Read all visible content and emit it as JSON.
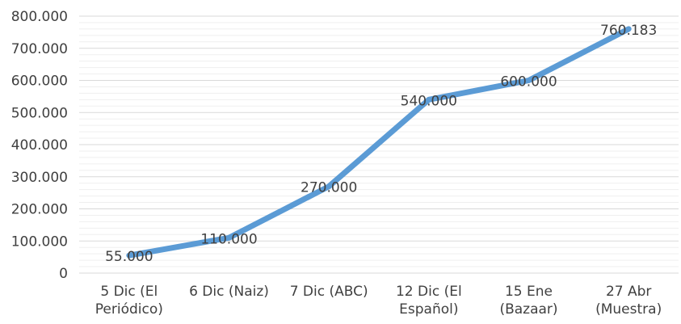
{
  "chart_data": {
    "type": "line",
    "title": "",
    "xlabel": "",
    "ylabel": "",
    "ylim": [
      0,
      800000
    ],
    "y_ticks": [
      "0",
      "100.000",
      "200.000",
      "300.000",
      "400.000",
      "500.000",
      "600.000",
      "700.000",
      "800.000"
    ],
    "categories": [
      [
        "5 Dic (El",
        "Periódico)"
      ],
      [
        "6 Dic (Naiz)"
      ],
      [
        "7 Dic (ABC)"
      ],
      [
        "12 Dic (El",
        "Español)"
      ],
      [
        "15 Ene",
        "(Bazaar)"
      ],
      [
        "27 Abr",
        "(Muestra)"
      ]
    ],
    "series": [
      {
        "values": [
          55000,
          110000,
          270000,
          540000,
          600000,
          760183
        ],
        "labels": [
          "55.000",
          "110.000",
          "270.000",
          "540.000",
          "600.000",
          "760.183"
        ],
        "color": "#5B9BD5"
      }
    ],
    "grid": true,
    "minor_grid": true,
    "legend": "none"
  }
}
